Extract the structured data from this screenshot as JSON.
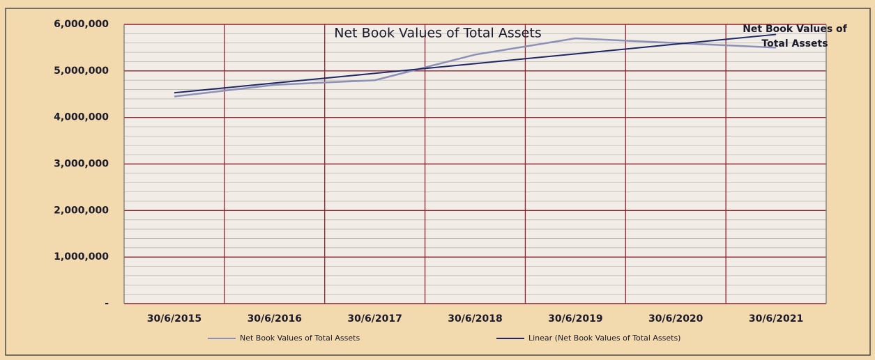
{
  "chart_data": {
    "type": "line",
    "title": "Net Book Values of Total Assets",
    "annotation": "Net Book Values of Total Assets",
    "categories": [
      "30/6/2015",
      "30/6/2016",
      "30/6/2017",
      "30/6/2018",
      "30/6/2019",
      "30/6/2020",
      "30/6/2021"
    ],
    "series": [
      {
        "name": "Net Book Values of Total Assets",
        "color": "#8c8fb6",
        "values": [
          4450000,
          4700000,
          4800000,
          5350000,
          5700000,
          5600000,
          5500000
        ]
      },
      {
        "name": "Linear (Net Book Values of Total Assets)",
        "color": "#1e2766",
        "values": [
          4530000,
          4739000,
          4948000,
          5157000,
          5366000,
          5575000,
          5784000
        ]
      }
    ],
    "ylim": [
      0,
      6000000
    ],
    "yticks": [
      {
        "value": 0,
        "label": "-"
      },
      {
        "value": 1000000,
        "label": "1,000,000"
      },
      {
        "value": 2000000,
        "label": "2,000,000"
      },
      {
        "value": 3000000,
        "label": "3,000,000"
      },
      {
        "value": 4000000,
        "label": "4,000,000"
      },
      {
        "value": 5000000,
        "label": "5,000,000"
      },
      {
        "value": 6000000,
        "label": "6,000,000"
      }
    ],
    "grid": true,
    "legend": "bottom"
  }
}
